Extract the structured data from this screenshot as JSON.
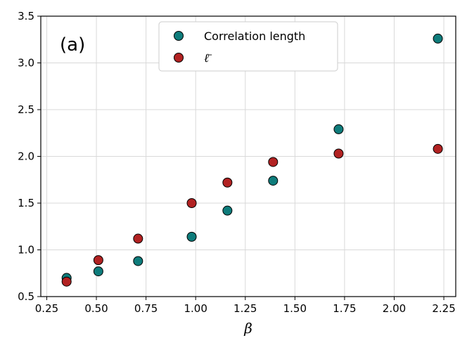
{
  "chart_data": {
    "type": "scatter",
    "panel_label": "(a)",
    "xlabel": "β",
    "ylabel": "",
    "xlim": [
      0.22,
      2.31
    ],
    "ylim": [
      0.5,
      3.5
    ],
    "xticks": [
      0.25,
      0.5,
      0.75,
      1.0,
      1.25,
      1.5,
      1.75,
      2.0,
      2.25
    ],
    "xtick_labels": [
      "0.25",
      "0.50",
      "0.75",
      "1.00",
      "1.25",
      "1.50",
      "1.75",
      "2.00",
      "2.25"
    ],
    "yticks": [
      0.5,
      1.0,
      1.5,
      2.0,
      2.5,
      3.0,
      3.5
    ],
    "ytick_labels": [
      "0.5",
      "1.0",
      "1.5",
      "2.0",
      "2.5",
      "3.0",
      "3.5"
    ],
    "grid": true,
    "legend_position": "top-center",
    "series": [
      {
        "name": "Correlation length",
        "color": "#0e7c7b",
        "x": [
          0.35,
          0.51,
          0.71,
          0.98,
          1.16,
          1.39,
          1.72,
          2.22
        ],
        "y": [
          0.7,
          0.77,
          0.88,
          1.14,
          1.42,
          1.74,
          2.29,
          3.26
        ]
      },
      {
        "name": "ℓ̄",
        "color": "#b22222",
        "x": [
          0.35,
          0.51,
          0.71,
          0.98,
          1.16,
          1.39,
          1.72,
          2.22
        ],
        "y": [
          0.66,
          0.89,
          1.12,
          1.5,
          1.72,
          1.94,
          2.03,
          2.08
        ]
      }
    ]
  }
}
